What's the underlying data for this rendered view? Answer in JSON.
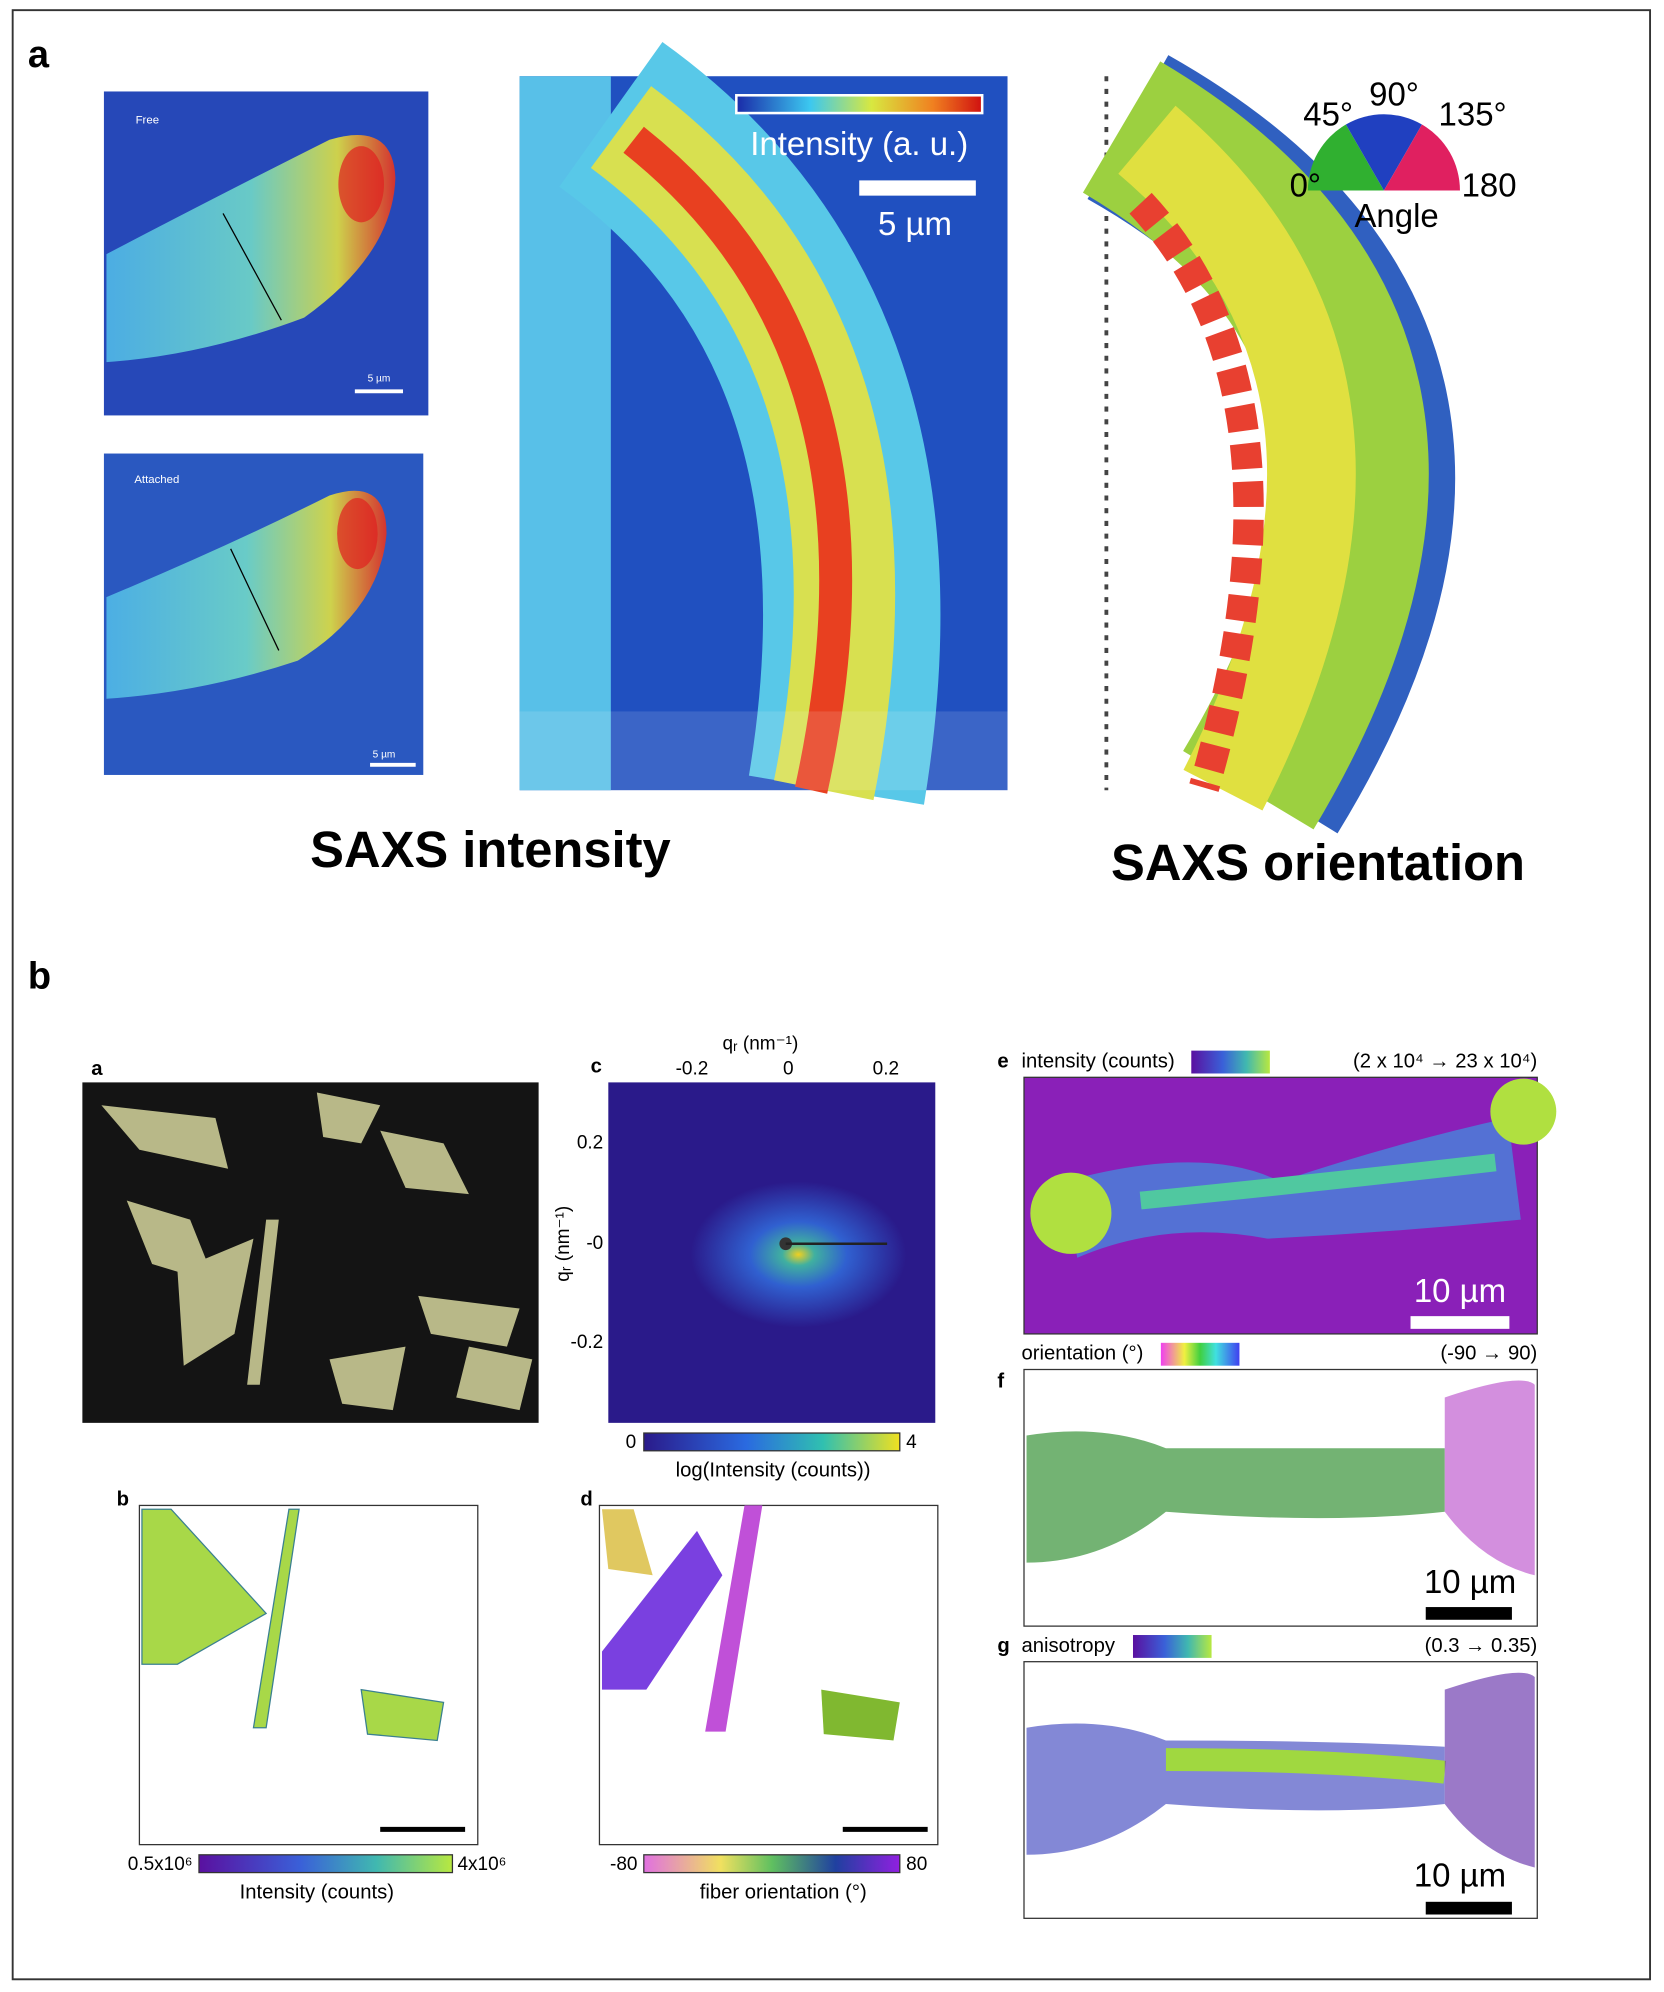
{
  "panel_a": {
    "label": "a",
    "free": {
      "title": "Free",
      "scale": "5 µm"
    },
    "attached": {
      "title": "Attached",
      "scale": "5 µm"
    },
    "intensity_map": {
      "colorbar_label": "Intensity (a. u.)",
      "scale": "5 µm"
    },
    "orientation_map": {
      "wheel": {
        "l45": "45°",
        "l90": "90°",
        "l135": "135°",
        "l0": "0°",
        "l180": "180",
        "title": "Angle"
      }
    },
    "caption_left": "SAXS intensity",
    "caption_right": "SAXS orientation"
  },
  "panel_b": {
    "label": "b",
    "a": {
      "label": "a"
    },
    "b": {
      "label": "b",
      "cbar_min": "0.5x10⁶",
      "cbar_max": "4x10⁶",
      "cbar_label": "Intensity (counts)"
    },
    "c": {
      "label": "c",
      "x_label": "qᵣ (nm⁻¹)",
      "x_ticks": [
        "-0.2",
        "0",
        "0.2"
      ],
      "y_label": "qᵣ (nm⁻¹)",
      "y_ticks": [
        "0.2",
        "-0",
        "-0.2"
      ],
      "cbar_min": "0",
      "cbar_max": "4",
      "cbar_label": "log(Intensity (counts))"
    },
    "d": {
      "label": "d",
      "cbar_min": "-80",
      "cbar_max": "80",
      "cbar_label": "fiber orientation (°)"
    },
    "e": {
      "label": "e",
      "title": "intensity (counts)",
      "range": "(2 x 10⁴ → 23 x 10⁴)",
      "scale": "10 µm"
    },
    "f": {
      "label": "f",
      "title": "orientation (°)",
      "range": "(-90 → 90)",
      "scale": "10 µm"
    },
    "g": {
      "label": "g",
      "title": "anisotropy",
      "range": "(0.3 → 0.35)",
      "scale": "10 µm"
    }
  }
}
